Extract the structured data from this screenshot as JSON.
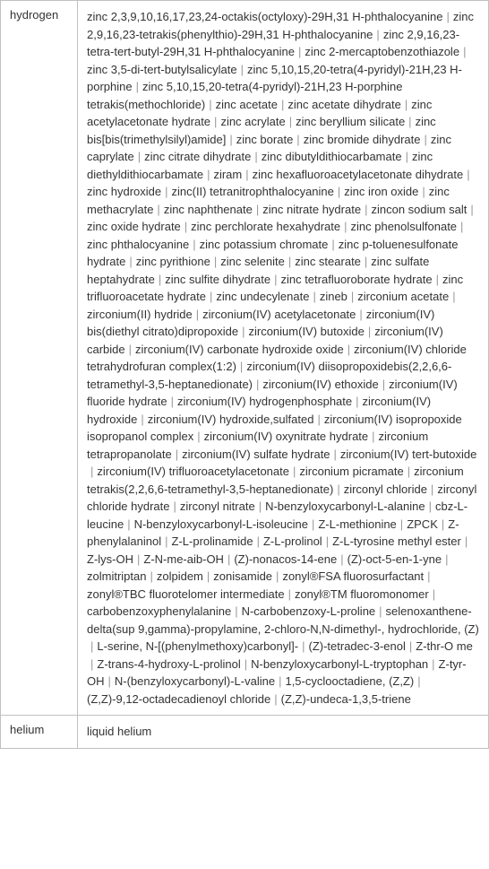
{
  "rows": [
    {
      "label": "hydrogen",
      "items": [
        "zinc 2,3,9,10,16,17,23,24-octakis(octyloxy)-29H,31 H-phthalocyanine",
        "zinc 2,9,16,23-tetrakis(phenylthio)-29H,31 H-phthalocyanine",
        "zinc 2,9,16,23-tetra-tert-butyl-29H,31 H-phthalocyanine",
        "zinc 2-mercaptobenzothiazole",
        "zinc 3,5-di-tert-butylsalicylate",
        "zinc 5,10,15,20-tetra(4-pyridyl)-21H,23 H-porphine",
        "zinc 5,10,15,20-tetra(4-pyridyl)-21H,23 H-porphine tetrakis(methochloride)",
        "zinc acetate",
        "zinc acetate dihydrate",
        "zinc acetylacetonate hydrate",
        "zinc acrylate",
        "zinc beryllium silicate",
        "zinc bis[bis(trimethylsilyl)amide]",
        "zinc borate",
        "zinc bromide dihydrate",
        "zinc caprylate",
        "zinc citrate dihydrate",
        "zinc dibutyldithiocarbamate",
        "zinc diethyldithiocarbamate",
        "ziram",
        "zinc hexafluoroacetylacetonate dihydrate",
        "zinc hydroxide",
        "zinc(II) tetranitrophthalocyanine",
        "zinc iron oxide",
        "zinc methacrylate",
        "zinc naphthenate",
        "zinc nitrate hydrate",
        "zincon sodium salt",
        "zinc oxide hydrate",
        "zinc perchlorate hexahydrate",
        "zinc phenolsulfonate",
        "zinc phthalocyanine",
        "zinc potassium chromate",
        "zinc p-toluenesulfonate hydrate",
        "zinc pyrithione",
        "zinc selenite",
        "zinc stearate",
        "zinc sulfate heptahydrate",
        "zinc sulfite dihydrate",
        "zinc tetrafluoroborate hydrate",
        "zinc trifluoroacetate hydrate",
        "zinc undecylenate",
        "zineb",
        "zirconium acetate",
        "zirconium(II) hydride",
        "zirconium(IV) acetylacetonate",
        "zirconium(IV) bis(diethyl citrato)dipropoxide",
        "zirconium(IV) butoxide",
        "zirconium(IV) carbide",
        "zirconium(IV) carbonate hydroxide oxide",
        "zirconium(IV) chloride tetrahydrofuran complex(1:2)",
        "zirconium(IV) diisopropoxidebis(2,2,6,6-tetramethyl-3,5-heptanedionate)",
        "zirconium(IV) ethoxide",
        "zirconium(IV) fluoride hydrate",
        "zirconium(IV) hydrogenphosphate",
        "zirconium(IV) hydroxide",
        "zirconium(IV) hydroxide,sulfated",
        "zirconium(IV) isopropoxide isopropanol complex",
        "zirconium(IV) oxynitrate hydrate",
        "zirconium tetrapropanolate",
        "zirconium(IV) sulfate hydrate",
        "zirconium(IV) tert-butoxide",
        "zirconium(IV) trifluoroacetylacetonate",
        "zirconium picramate",
        "zirconium tetrakis(2,2,6,6-tetramethyl-3,5-heptanedionate)",
        "zirconyl chloride",
        "zirconyl chloride hydrate",
        "zirconyl nitrate",
        "N-benzyloxycarbonyl-L-alanine",
        "cbz-L-leucine",
        "N-benzyloxycarbonyl-L-isoleucine",
        "Z-L-methionine",
        "ZPCK",
        "Z-phenylalaninol",
        "Z-L-prolinamide",
        "Z-L-prolinol",
        "Z-L-tyrosine methyl ester",
        "Z-lys-OH",
        "Z-N-me-aib-OH",
        "(Z)-nonacos-14-ene",
        "(Z)-oct-5-en-1-yne",
        "zolmitriptan",
        "zolpidem",
        "zonisamide",
        "zonyl®FSA fluorosurfactant",
        "zonyl®TBC fluorotelomer intermediate",
        "zonyl®TM fluoromonomer",
        "carbobenzoxyphenylalanine",
        "N-carbobenzoxy-L-proline",
        "selenoxanthene-delta(sup 9,gamma)-propylamine, 2-chloro-N,N-dimethyl-, hydrochloride, (Z)",
        "L-serine, N-[(phenylmethoxy)carbonyl]-",
        "(Z)-tetradec-3-enol",
        "Z-thr-O me",
        "Z-trans-4-hydroxy-L-prolinol",
        "N-benzyloxycarbonyl-L-tryptophan",
        "Z-tyr-OH",
        "N-(benzyloxycarbonyl)-L-valine",
        "1,5-cyclooctadiene, (Z,Z)",
        "(Z,Z)-9,12-octadecadienoyl chloride",
        "(Z,Z)-undeca-1,3,5-triene"
      ]
    },
    {
      "label": "helium",
      "items": [
        "liquid helium"
      ]
    }
  ],
  "separator": "|"
}
